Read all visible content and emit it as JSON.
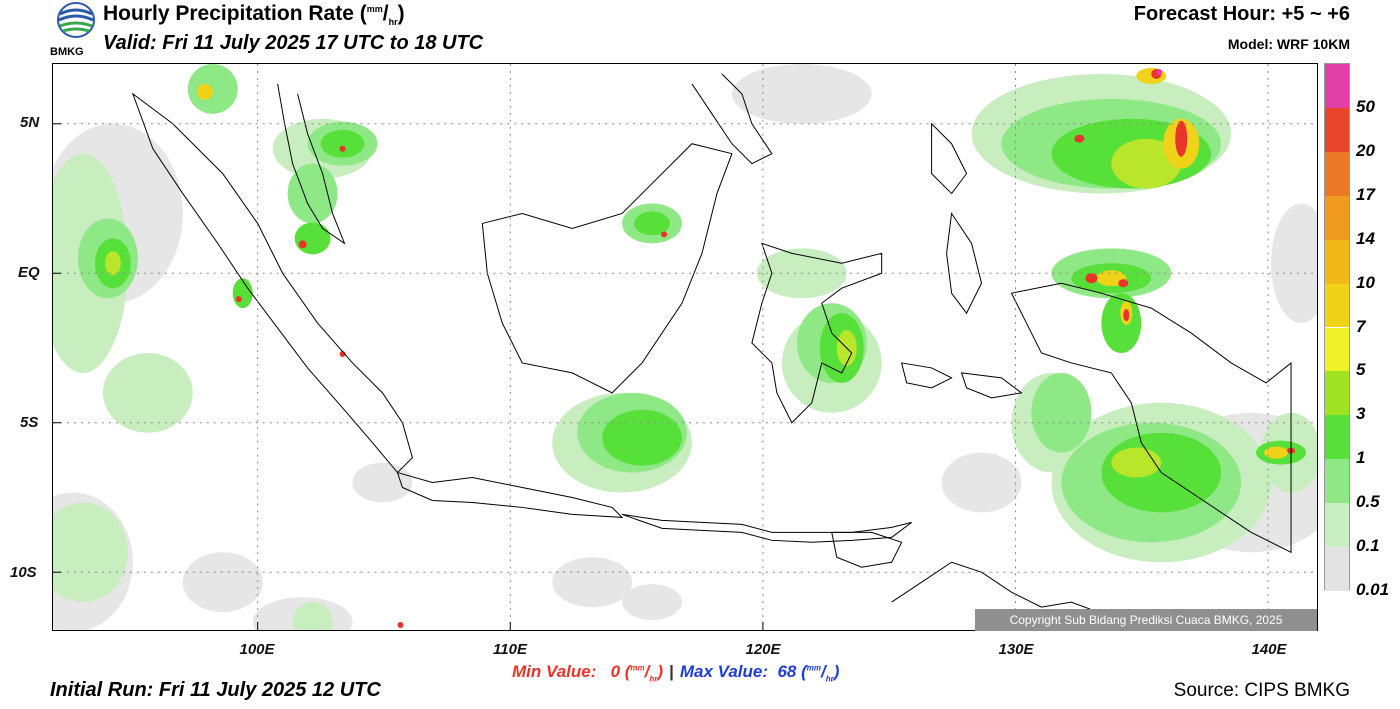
{
  "header": {
    "title": "Hourly Precipitation Rate",
    "title_unit_top": "mm",
    "title_unit_bottom": "hr",
    "valid": "Valid: Fri 11 July 2025 17 UTC to 18 UTC",
    "forecast_hour": "Forecast Hour: +5 ~ +6",
    "model": "Model: WRF 10KM",
    "logo_text": "BMKG"
  },
  "map": {
    "lon_labels": [
      "100E",
      "110E",
      "120E",
      "130E",
      "140E"
    ],
    "lat_labels": [
      "5N",
      "EQ",
      "5S",
      "10S"
    ],
    "copyright": "Copyright Sub Bidang Prediksi Cuaca BMKG, 2025"
  },
  "colorbar": {
    "levels": [
      "0.01",
      "0.1",
      "0.5",
      "1",
      "3",
      "5",
      "7",
      "10",
      "14",
      "17",
      "20",
      "50"
    ],
    "colors": [
      "#e3e3e3",
      "#c8eec0",
      "#8fe886",
      "#58e03a",
      "#9fe321",
      "#eef226",
      "#f0d319",
      "#f1b817",
      "#f09a20",
      "#ec7826",
      "#e8442b",
      "#e33fa8"
    ]
  },
  "footer": {
    "min_label": "Min Value:",
    "min_value": "0",
    "max_label": "Max Value:",
    "max_value": "68",
    "unit_top": "mm",
    "unit_bottom": "hr",
    "initial_run": "Initial Run: Fri 11 July 2025 12 UTC",
    "source": "Source: CIPS BMKG"
  }
}
